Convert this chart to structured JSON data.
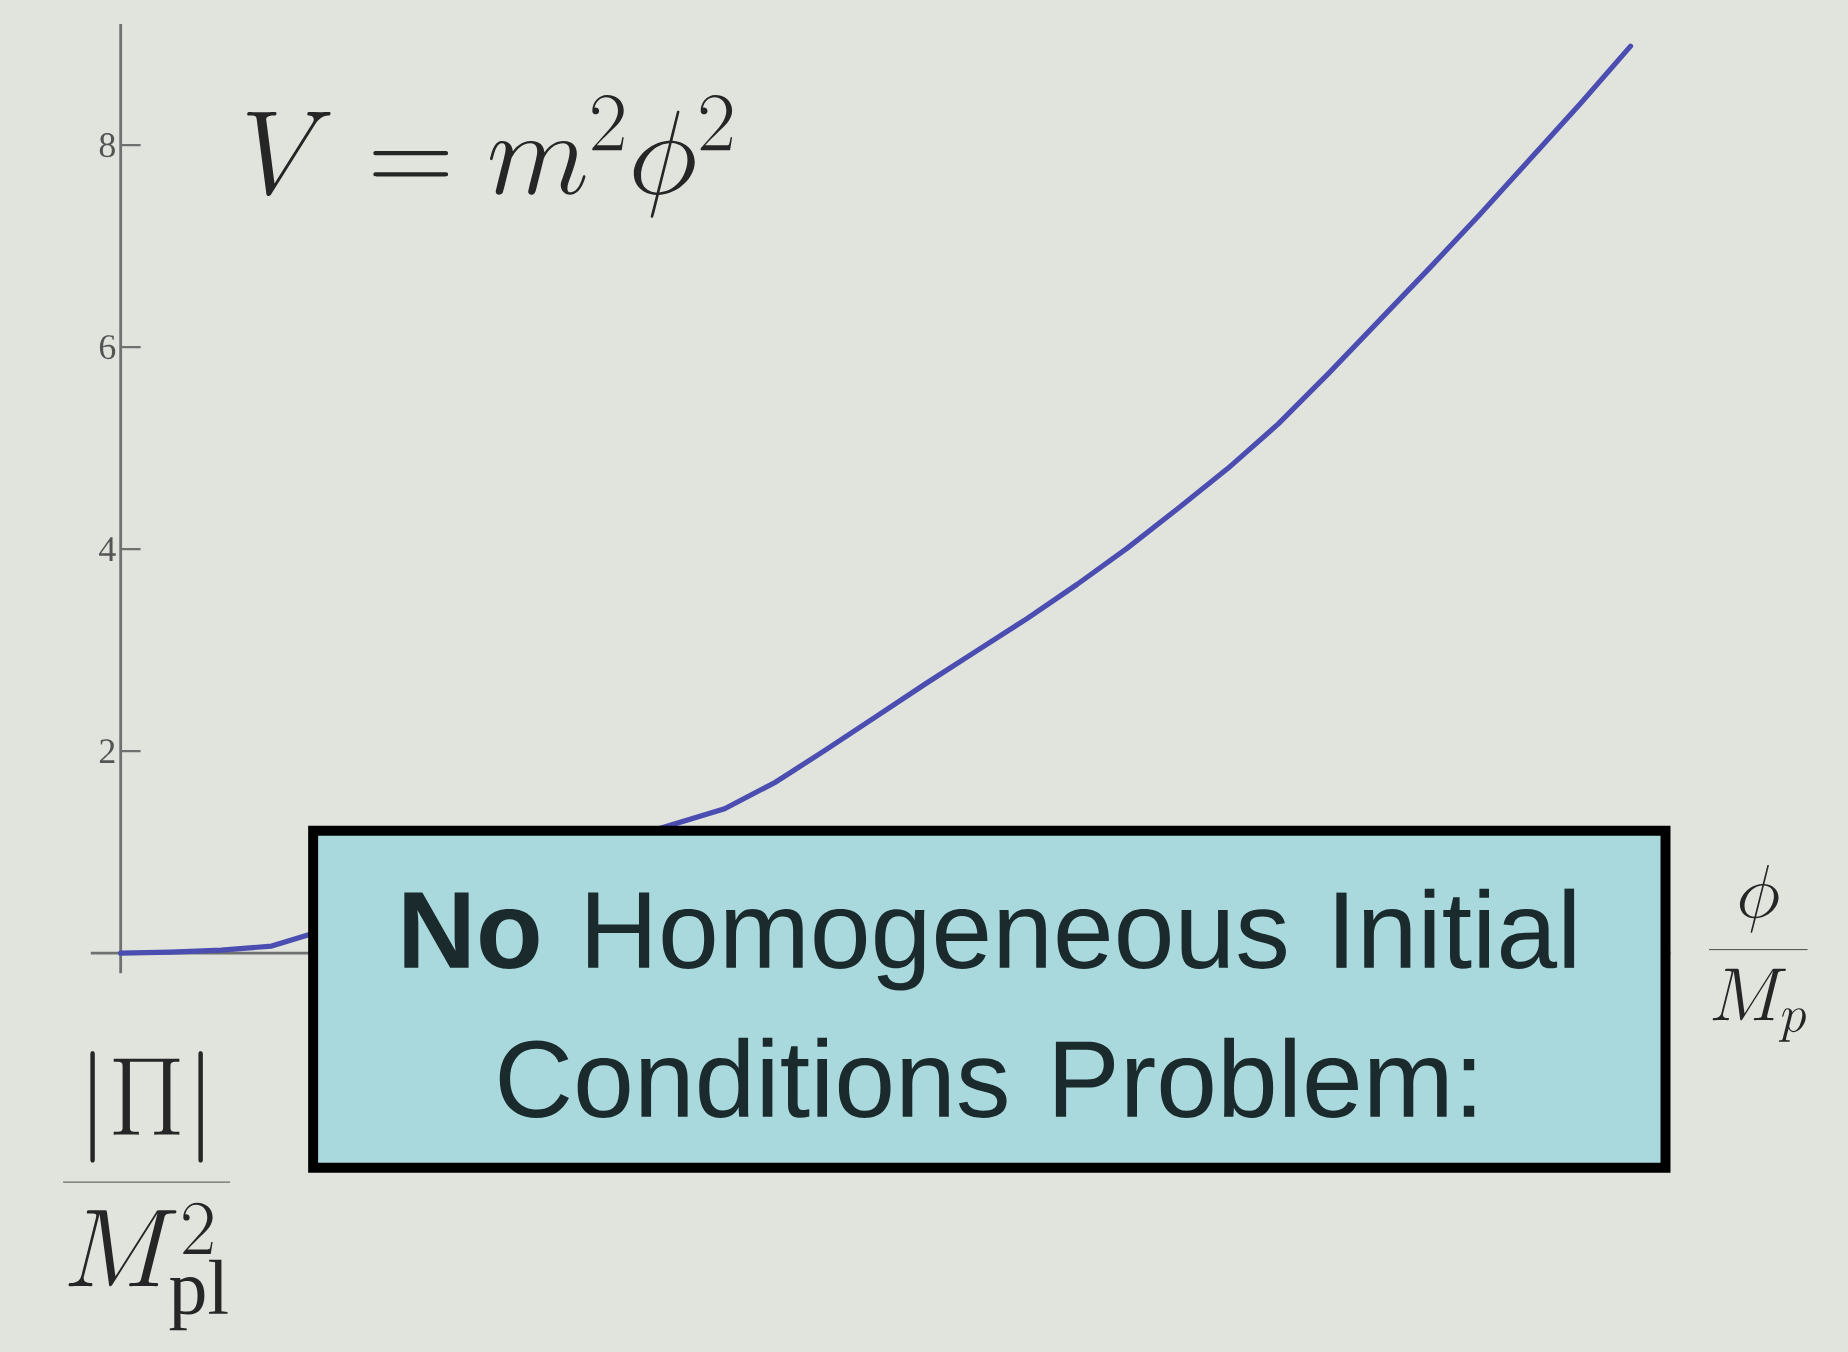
{
  "chart_data": {
    "type": "line",
    "xlabel": "\\frac{\\phi}{M_p}",
    "annotations": [
      "V = m^2\\phi^2",
      "**No** Homogeneous Initial Conditions Problem:",
      "\\frac{|\\Pi|}{M_{\\mathrm{pl}}^2}"
    ],
    "categories": [
      null,
      null,
      null,
      null,
      null,
      null,
      null,
      null,
      null,
      null,
      null,
      null,
      null,
      null,
      null,
      null,
      null,
      null,
      null,
      null,
      null,
      null,
      null,
      null,
      null,
      null,
      null,
      null,
      null,
      null,
      null
    ],
    "series": [
      {
        "color": "#4b4db0",
        "values": [
          0,
          0.01,
          0.03,
          0.07,
          null,
          null,
          null,
          null,
          null,
          null,
          null,
          null,
          1.43,
          1.69,
          2.01,
          2.34,
          2.67,
          2.99,
          3.31,
          3.65,
          4.01,
          4.4,
          4.8,
          5.24,
          5.74,
          6.26,
          6.78,
          7.31,
          7.86,
          8.41,
          8.98
        ]
      }
    ],
    "ylim": [
      -0.2,
      9.2
    ],
    "yticks": [
      2,
      4,
      6,
      8
    ],
    "tick_labels": "y",
    "marker": "none",
    "line_style": "solid"
  }
}
